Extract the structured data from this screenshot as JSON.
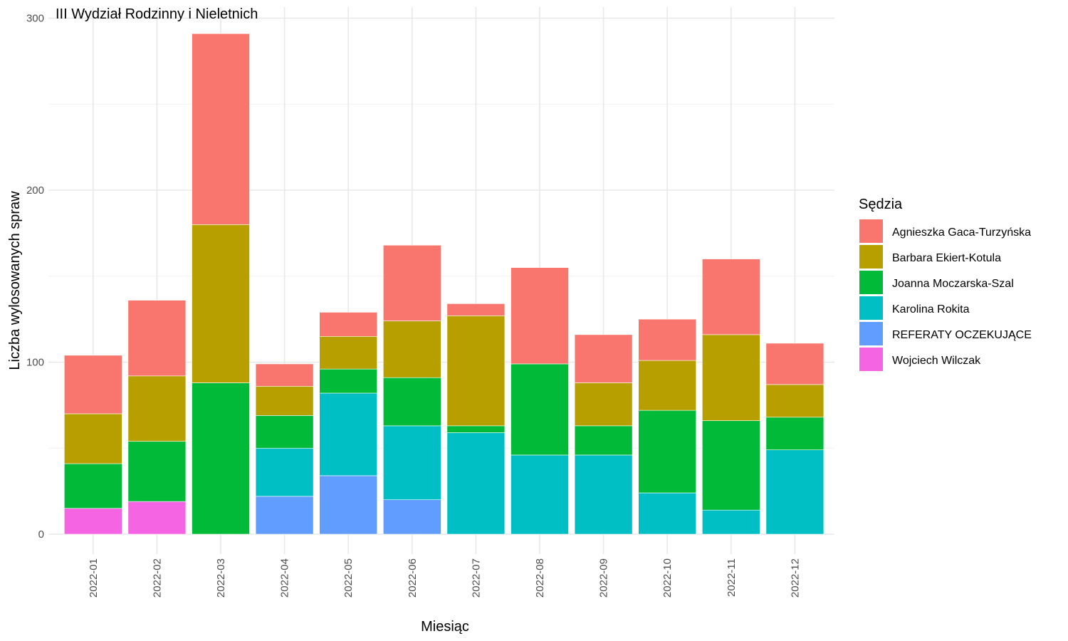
{
  "chart_data": {
    "type": "bar",
    "stacked": true,
    "title": "III Wydział Rodzinny i Nieletnich",
    "xlabel": "Miesiąc",
    "ylabel": "Liczba wylosowanych spraw",
    "ylim": [
      0,
      300
    ],
    "yticks": [
      0,
      100,
      200,
      300
    ],
    "grid": true,
    "legend_title": "Sędzia",
    "legend_position": "right",
    "categories": [
      "2022-01",
      "2022-02",
      "2022-03",
      "2022-04",
      "2022-05",
      "2022-06",
      "2022-07",
      "2022-08",
      "2022-09",
      "2022-10",
      "2022-11",
      "2022-12"
    ],
    "series": [
      {
        "name": "Agnieszka Gaca-Turzyńska",
        "color": "#F8766D",
        "values": [
          34,
          44,
          111,
          13,
          14,
          44,
          7,
          56,
          28,
          24,
          44,
          24
        ]
      },
      {
        "name": "Barbara Ekiert-Kotula",
        "color": "#B79F00",
        "values": [
          29,
          38,
          92,
          17,
          19,
          33,
          64,
          0,
          25,
          29,
          50,
          19
        ]
      },
      {
        "name": "Joanna Moczarska-Szal",
        "color": "#00BA38",
        "values": [
          26,
          35,
          88,
          19,
          14,
          28,
          4,
          53,
          17,
          48,
          52,
          19
        ]
      },
      {
        "name": "Karolina Rokita",
        "color": "#00BFC4",
        "values": [
          0,
          0,
          0,
          28,
          48,
          43,
          59,
          46,
          46,
          24,
          14,
          49
        ]
      },
      {
        "name": "REFERATY OCZEKUJĄCE",
        "color": "#619CFF",
        "values": [
          0,
          0,
          0,
          22,
          34,
          20,
          0,
          0,
          0,
          0,
          0,
          0
        ]
      },
      {
        "name": "Wojciech Wilczak",
        "color": "#F564E3",
        "values": [
          15,
          19,
          0,
          0,
          0,
          0,
          0,
          0,
          0,
          0,
          0,
          0
        ]
      }
    ]
  }
}
